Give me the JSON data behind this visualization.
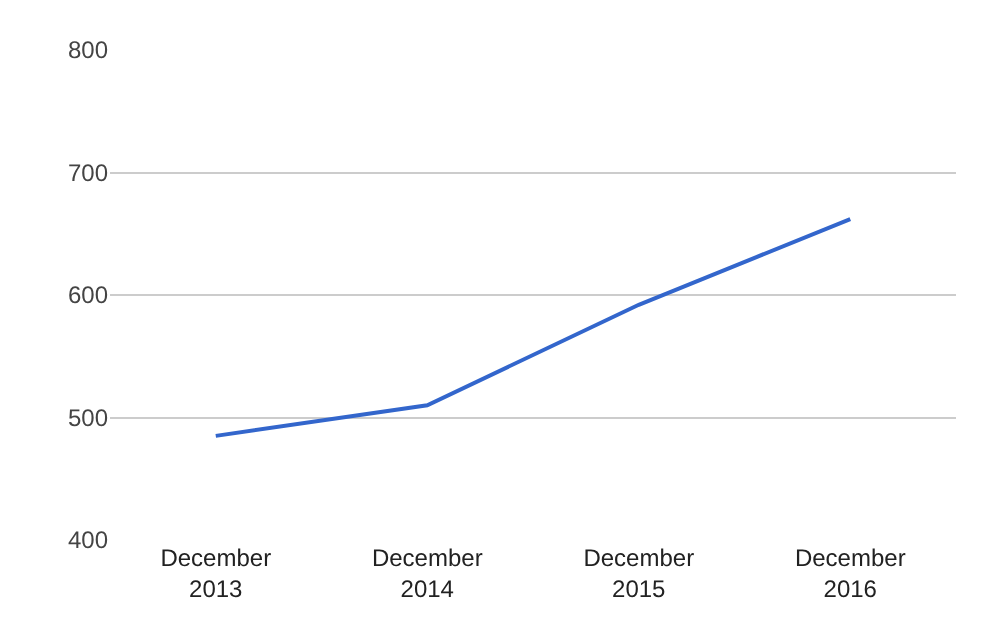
{
  "chart_data": {
    "type": "line",
    "categories": [
      "December\n2013",
      "December\n2014",
      "December\n2015",
      "December\n2016"
    ],
    "series": [
      {
        "color": "#3366cc",
        "values": [
          485,
          510,
          592,
          662
        ]
      }
    ],
    "ylim": [
      400,
      800
    ],
    "yticks": [
      400,
      500,
      600,
      700,
      800
    ],
    "grid": "y",
    "legend": false,
    "marker": "none",
    "line_style": "solid"
  }
}
